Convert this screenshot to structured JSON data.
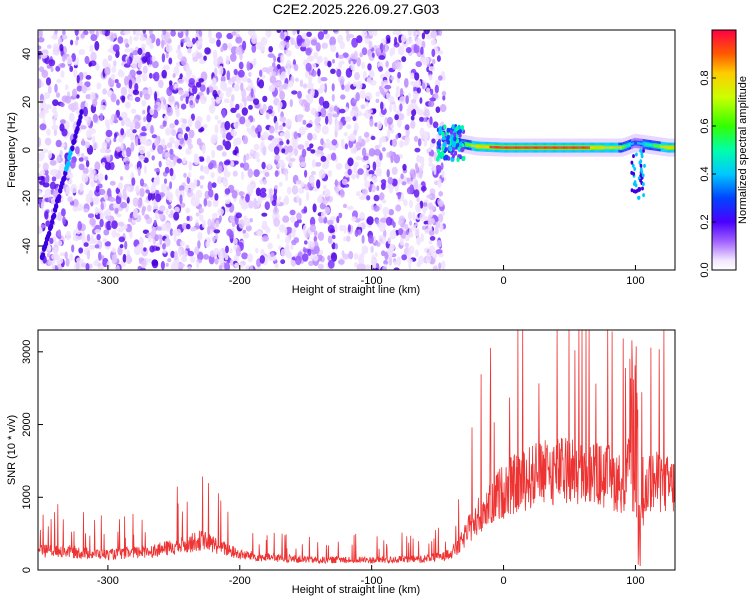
{
  "title": "C2E2.2025.226.09.27.G03",
  "chart_data": [
    {
      "type": "heatmap",
      "xlabel": "Height of straight line (km)",
      "ylabel": "Frequency (Hz)",
      "xlim": [
        -353,
        130
      ],
      "ylim": [
        -50,
        50
      ],
      "xticks": [
        "-300",
        "-200",
        "-100",
        "0",
        "100"
      ],
      "xtick_values": [
        -300,
        -200,
        -100,
        0,
        100
      ],
      "yticks": [
        "-40",
        "-20",
        "0",
        "20",
        "40"
      ],
      "ytick_values": [
        -40,
        -20,
        0,
        20,
        40
      ],
      "noise_region_x": [
        -353,
        -45
      ],
      "signal_band": [
        {
          "x": -45,
          "y": 5,
          "amp": 0.25
        },
        {
          "x": -35,
          "y": 3,
          "amp": 0.45
        },
        {
          "x": -20,
          "y": 1.5,
          "amp": 0.8
        },
        {
          "x": 0,
          "y": 1,
          "amp": 0.9
        },
        {
          "x": 50,
          "y": 1,
          "amp": 0.95
        },
        {
          "x": 90,
          "y": 1,
          "amp": 0.7
        },
        {
          "x": 100,
          "y": 3,
          "amp": 0.2
        },
        {
          "x": 125,
          "y": 1,
          "amp": 0.85
        }
      ],
      "colorbar": {
        "label": "Normalized spectral amplitude",
        "range": [
          0,
          1
        ],
        "ticks": [
          "0.0",
          "0.2",
          "0.4",
          "0.6",
          "0.8"
        ],
        "tick_values": [
          0,
          0.2,
          0.4,
          0.6,
          0.8
        ]
      }
    },
    {
      "type": "line",
      "xlabel": "Height of straight line (km)",
      "ylabel": "SNR (10 * v/v)",
      "xlim": [
        -353,
        130
      ],
      "ylim": [
        0,
        3300
      ],
      "xticks": [
        "-300",
        "-200",
        "-100",
        "0",
        "100"
      ],
      "xtick_values": [
        -300,
        -200,
        -100,
        0,
        100
      ],
      "yticks": [
        "0",
        "1000",
        "2000",
        "3000"
      ],
      "ytick_values": [
        0,
        1000,
        2000,
        3000
      ],
      "series": [
        {
          "color": "#ee3333",
          "x": [
            -353,
            -340,
            -320,
            -300,
            -280,
            -260,
            -240,
            -230,
            -220,
            -210,
            -200,
            -180,
            -160,
            -140,
            -120,
            -100,
            -80,
            -60,
            -45,
            -35,
            -25,
            -15,
            -5,
            5,
            20,
            40,
            60,
            80,
            90,
            95,
            100,
            105,
            110,
            120,
            130
          ],
          "y": [
            300,
            320,
            280,
            250,
            280,
            330,
            420,
            480,
            420,
            330,
            250,
            200,
            180,
            160,
            170,
            160,
            170,
            180,
            220,
            350,
            700,
            1000,
            1200,
            1350,
            1500,
            1600,
            1580,
            1500,
            1400,
            1600,
            1300,
            800,
            1450,
            1400,
            1350
          ]
        }
      ]
    }
  ]
}
